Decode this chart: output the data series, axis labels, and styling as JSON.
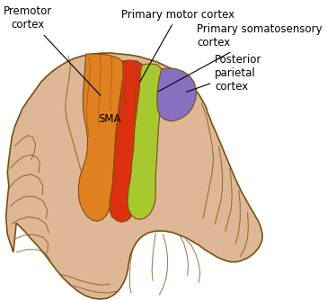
{
  "bg_color": "#ffffff",
  "brain_color": "#deb896",
  "brain_light_color": "#e8c9a8",
  "brain_outline_color": "#7a5010",
  "premotor_color": "#e08020",
  "primary_motor_color": "#dd3010",
  "primary_somatosensory_color": "#a8c830",
  "posterior_parietal_color": "#8870c0",
  "labels": {
    "premotor": "Premotor\ncortex",
    "sma": "SMA",
    "primary_motor": "Primary motor cortex",
    "primary_somatosensory": "Primary somatosensory\ncortex",
    "posterior_parietal": "Posterior\nparietal\ncortex"
  },
  "fontsize": 8.5
}
